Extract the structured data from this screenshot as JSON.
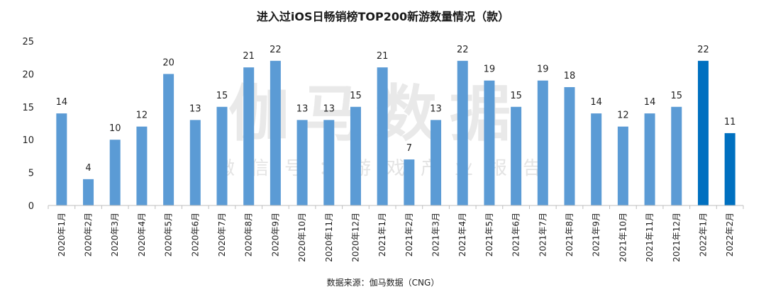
{
  "chart_data": {
    "type": "bar",
    "title": "进入过iOS日畅销榜TOP200新游数量情况（款）",
    "source": "数据来源：伽马数据（CNG）",
    "watermark": "伽马数据",
    "watermark_sub": "微信号：游戏产业报告",
    "categories": [
      "2020年1月",
      "2020年2月",
      "2020年3月",
      "2020年4月",
      "2020年5月",
      "2020年6月",
      "2020年7月",
      "2020年8月",
      "2020年9月",
      "2020年10月",
      "2020年11月",
      "2020年12月",
      "2021年1月",
      "2021年2月",
      "2021年3月",
      "2021年4月",
      "2021年5月",
      "2021年6月",
      "2021年7月",
      "2021年8月",
      "2021年9月",
      "2021年10月",
      "2021年11月",
      "2021年12月",
      "2022年1月",
      "2022年2月"
    ],
    "values": [
      14,
      4,
      10,
      12,
      20,
      13,
      15,
      21,
      22,
      13,
      13,
      15,
      21,
      7,
      13,
      22,
      19,
      15,
      19,
      18,
      14,
      12,
      14,
      15,
      22,
      11
    ],
    "ylim": [
      0,
      25
    ],
    "yticks": [
      0,
      5,
      10,
      15,
      20,
      25
    ],
    "grid": false,
    "colors": {
      "default": "#5b9bd5",
      "highlight": "#0070c0"
    },
    "highlight_indices": [
      24,
      25
    ]
  }
}
